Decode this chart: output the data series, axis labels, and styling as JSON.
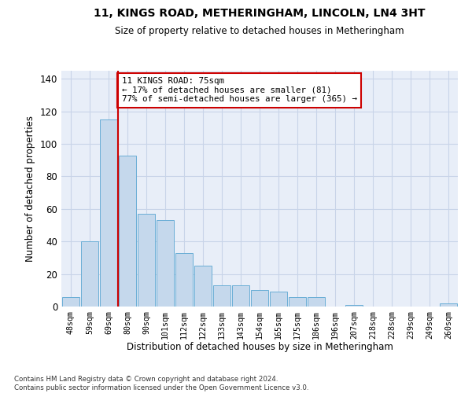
{
  "title": "11, KINGS ROAD, METHERINGHAM, LINCOLN, LN4 3HT",
  "subtitle": "Size of property relative to detached houses in Metheringham",
  "xlabel": "Distribution of detached houses by size in Metheringham",
  "ylabel": "Number of detached properties",
  "categories": [
    "48sqm",
    "59sqm",
    "69sqm",
    "80sqm",
    "90sqm",
    "101sqm",
    "112sqm",
    "122sqm",
    "133sqm",
    "143sqm",
    "154sqm",
    "165sqm",
    "175sqm",
    "186sqm",
    "196sqm",
    "207sqm",
    "218sqm",
    "228sqm",
    "239sqm",
    "249sqm",
    "260sqm"
  ],
  "values": [
    6,
    40,
    115,
    93,
    57,
    53,
    33,
    25,
    13,
    13,
    10,
    9,
    6,
    6,
    0,
    1,
    0,
    0,
    0,
    0,
    2
  ],
  "bar_color": "#c5d8ec",
  "bar_edge_color": "#6aaed6",
  "grid_color": "#c8d4e8",
  "background_color": "#e8eef8",
  "vline_color": "#cc0000",
  "annotation_text": "11 KINGS ROAD: 75sqm\n← 17% of detached houses are smaller (81)\n77% of semi-detached houses are larger (365) →",
  "annotation_box_color": "#ffffff",
  "annotation_box_edge": "#cc0000",
  "ylim": [
    0,
    145
  ],
  "yticks": [
    0,
    20,
    40,
    60,
    80,
    100,
    120,
    140
  ]
}
